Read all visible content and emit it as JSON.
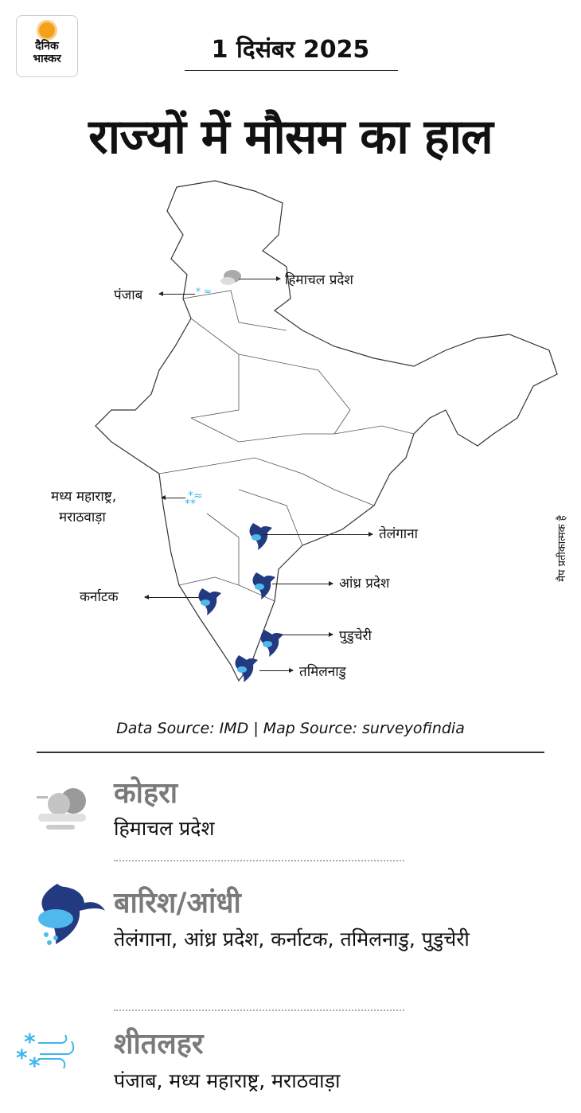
{
  "logo": {
    "line1": "दैनिक",
    "line2": "भास्कर"
  },
  "date": "1 दिसंबर 2025",
  "title": "राज्यों में मौसम का हाल",
  "map": {
    "labels": {
      "himachal": "हिमाचल प्रदेश",
      "punjab": "पंजाब",
      "madhya_maharashtra": "मध्य महाराष्ट्र,",
      "marathwada": "मराठवाड़ा",
      "telangana": "तेलंगाना",
      "andhra": "आंध्र प्रदेश",
      "karnataka": "कर्नाटक",
      "puducherry": "पुडुचेरी",
      "tamilnadu": "तमिलनाडु"
    },
    "note": "मैप प्रतीकात्मक है"
  },
  "source": "Data Source: IMD  | Map Source: surveyofindia",
  "legend": [
    {
      "icon": "fog-icon",
      "title": "कोहरा",
      "states": "हिमाचल प्रदेश"
    },
    {
      "icon": "rain-storm-icon",
      "title": "बारिश/आंधी",
      "states": "तेलंगाना, आंध्र प्रदेश, कर्नाटक, तमिलनाडु, पुडुचेरी"
    },
    {
      "icon": "cold-wave-icon",
      "title": "शीतलहर",
      "states": "पंजाब, मध्य महाराष्ट्र, मराठवाड़ा"
    }
  ],
  "colors": {
    "storm": "#233a80",
    "rain": "#4fb8ec",
    "cold": "#3db6ea",
    "fog": "#a8a8a8",
    "logo_sun": "#f5a01a"
  }
}
